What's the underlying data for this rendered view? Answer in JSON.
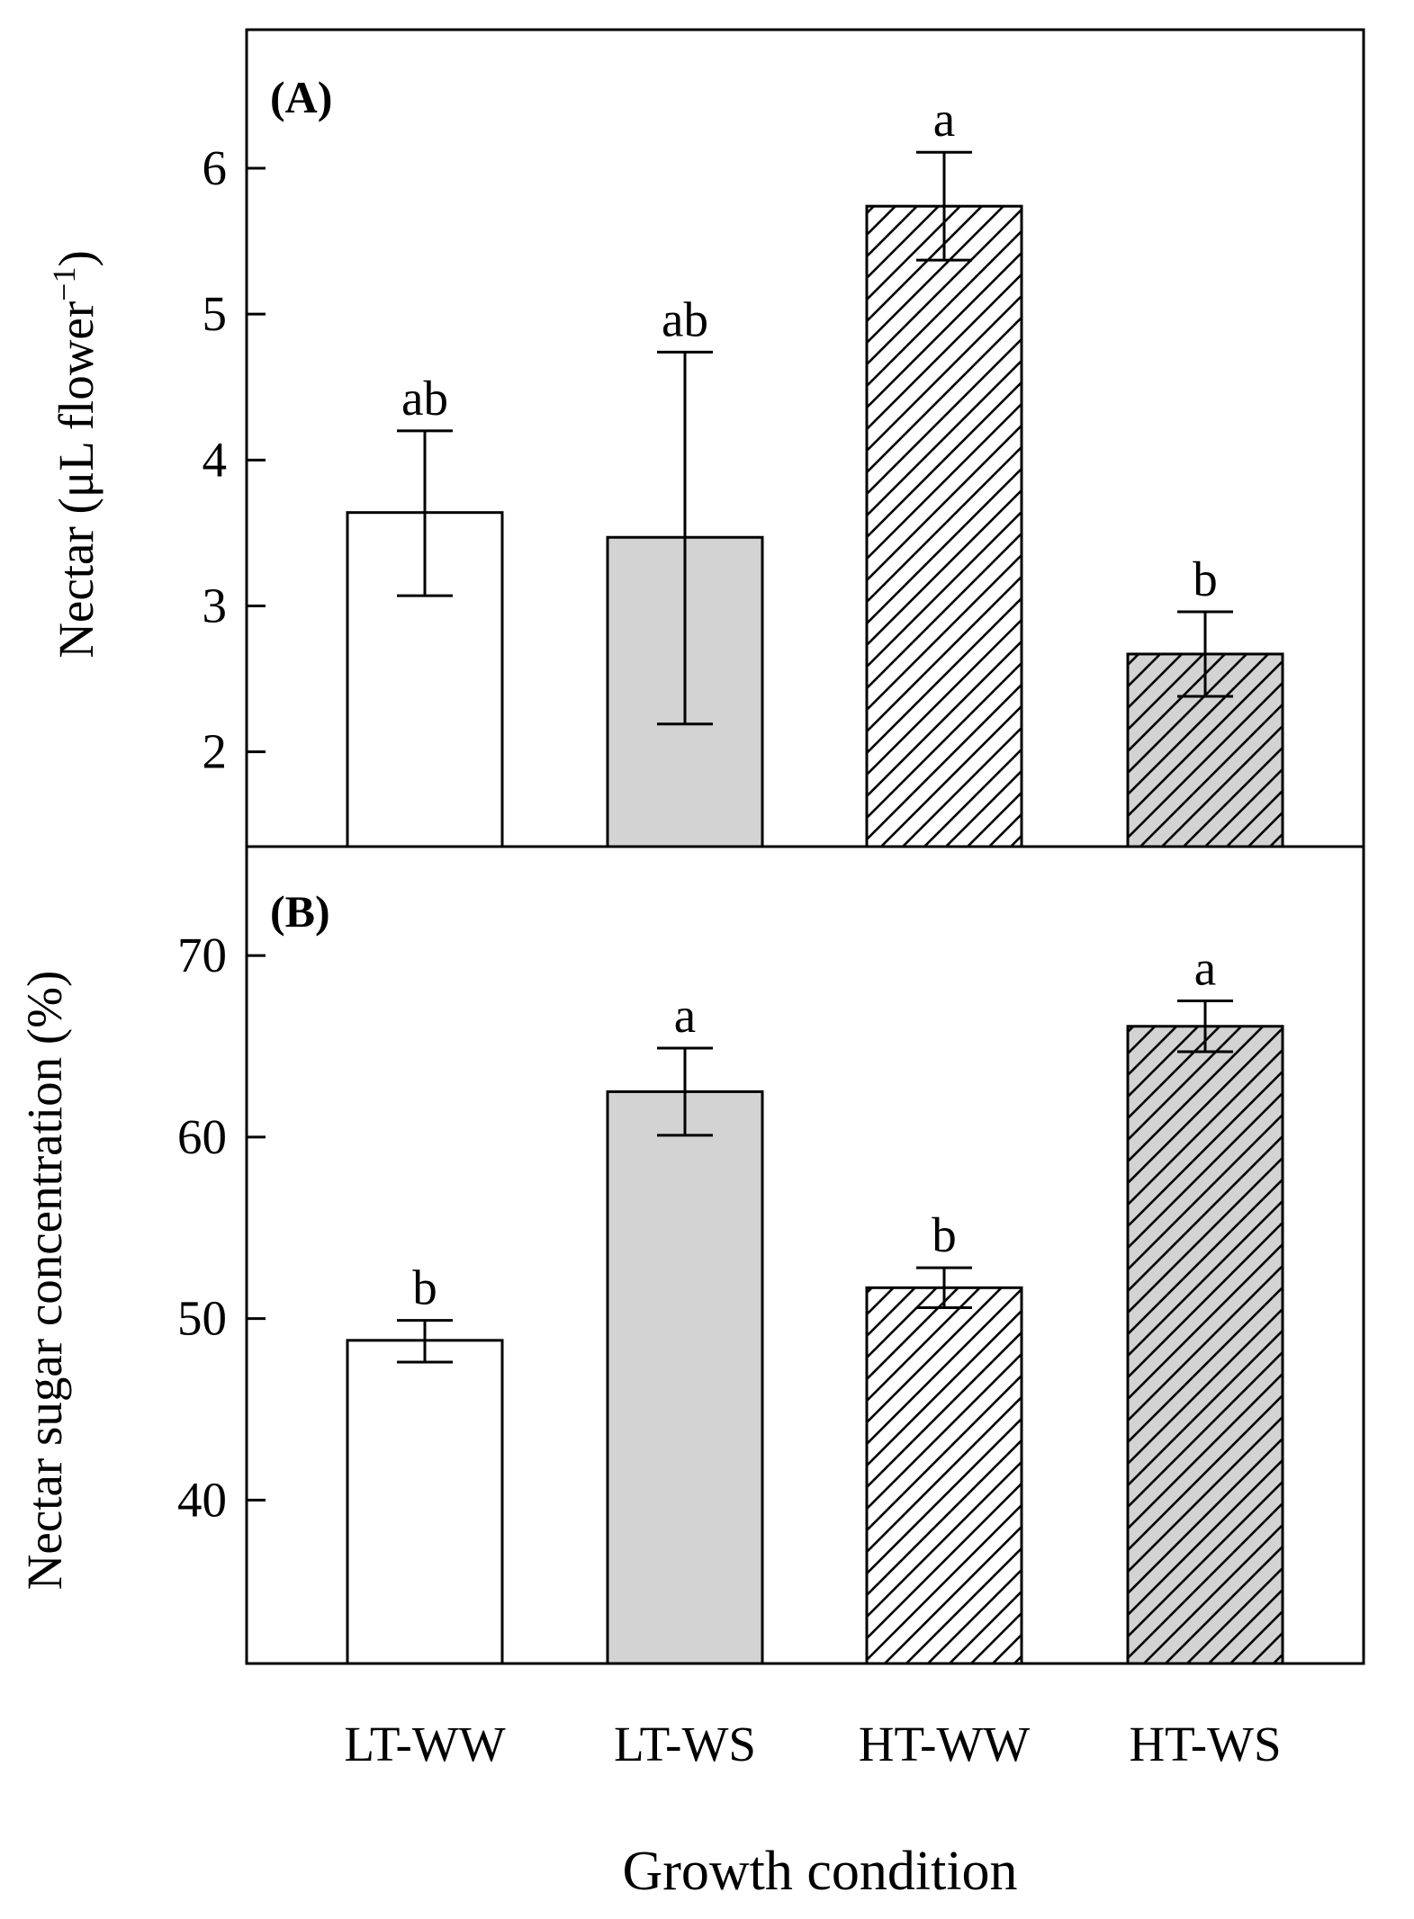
{
  "chart_data": [
    {
      "type": "bar",
      "panel_label": "(A)",
      "categories": [
        "LT-WW",
        "LT-WS",
        "HT-WW",
        "HT-WS"
      ],
      "values": [
        3.64,
        3.47,
        5.74,
        2.67
      ],
      "error_upper": [
        4.2,
        4.74,
        6.11,
        2.96
      ],
      "error_lower": [
        3.07,
        2.19,
        5.37,
        2.38
      ],
      "letters": [
        "ab",
        "ab",
        "a",
        "b"
      ],
      "ylabel": "Nectar (μL flower",
      "ylabel_sup": "−1",
      "ylabel_end": ")",
      "ylim": [
        1.35,
        6.95
      ],
      "yticks": [
        2,
        3,
        4,
        5,
        6
      ],
      "ytick_labels": [
        "2",
        "3",
        "4",
        "5",
        "6"
      ]
    },
    {
      "type": "bar",
      "panel_label": "(B)",
      "categories": [
        "LT-WW",
        "LT-WS",
        "HT-WW",
        "HT-WS"
      ],
      "values": [
        48.8,
        62.5,
        51.7,
        66.1
      ],
      "error_upper": [
        49.9,
        64.9,
        52.8,
        67.5
      ],
      "error_lower": [
        47.6,
        60.1,
        50.6,
        64.7
      ],
      "letters": [
        "b",
        "a",
        "b",
        "a"
      ],
      "ylabel": "Nectar sugar concentration (%)",
      "ylim": [
        31,
        76
      ],
      "yticks": [
        40,
        50,
        60,
        70
      ],
      "ytick_labels": [
        "40",
        "50",
        "60",
        "70"
      ]
    }
  ],
  "xlabel": "Growth condition",
  "category_labels": [
    "LT-WW",
    "LT-WS",
    "HT-WW",
    "HT-WS"
  ],
  "bar_styles": [
    {
      "fill": "#ffffff",
      "hatch": false
    },
    {
      "fill": "#d3d3d3",
      "hatch": false
    },
    {
      "fill": "#ffffff",
      "hatch": true
    },
    {
      "fill": "#d3d3d3",
      "hatch": true
    }
  ]
}
